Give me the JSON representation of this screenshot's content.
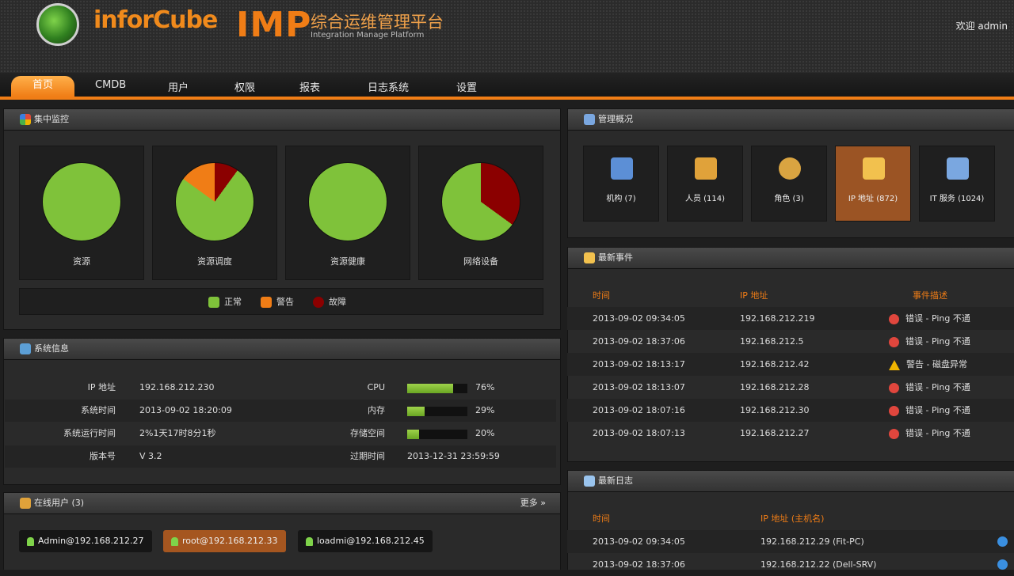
{
  "header": {
    "brand": "inforCube",
    "product": "IMP",
    "title_cn": "综合运维管理平台",
    "title_en": "Integration Manage Platform",
    "user_link": "欢迎 admin"
  },
  "nav": {
    "items": [
      "首页",
      "CMDB",
      "用户",
      "权限",
      "报表",
      "日志系统",
      "设置"
    ]
  },
  "monitor": {
    "title": "集中监控",
    "pies": [
      {
        "label": "资源",
        "normal": 100,
        "warn": 0,
        "fault": 0
      },
      {
        "label": "资源调度",
        "normal": 75,
        "warn": 15,
        "fault": 10
      },
      {
        "label": "资源健康",
        "normal": 100,
        "warn": 0,
        "fault": 0
      },
      {
        "label": "网络设备",
        "normal": 65,
        "warn": 0,
        "fault": 35
      }
    ],
    "legend": [
      "正常",
      "警告",
      "故障"
    ],
    "colors": {
      "normal": "#7fc23a",
      "warn": "#f07d16",
      "fault": "#8b0000"
    }
  },
  "sysinfo": {
    "title": "系统信息",
    "rows": [
      {
        "label": "IP 地址",
        "value": "192.168.212.230",
        "label2": "CPU",
        "bar": 0.76,
        "value2": "76%"
      },
      {
        "label": "系统时间",
        "value": "2013-09-02 18:20:09",
        "label2": "内存",
        "bar": 0.29,
        "value2": "29%"
      },
      {
        "label": "系统运行时间",
        "value": "2%1天17时8分1秒",
        "label2": "存储空间",
        "bar": 0.2,
        "value2": "20%"
      },
      {
        "label": "版本号",
        "value": "V 3.2",
        "label2": "过期时间",
        "value2": "2013-12-31 23:59:59"
      }
    ]
  },
  "online": {
    "title": "在线用户 (3)",
    "more": "更多 »",
    "users": [
      "Admin@192.168.212.27",
      "root@192.168.212.33",
      "loadmi@192.168.212.45"
    ]
  },
  "manage": {
    "title": "管理概况",
    "tiles": [
      {
        "label": "机构 (7)",
        "icon": "building-icon",
        "color": "#5c8fd6"
      },
      {
        "label": "人员 (114)",
        "icon": "people-icon",
        "color": "#e0a23a"
      },
      {
        "label": "角色 (3)",
        "icon": "medal-icon",
        "color": "#d9a441"
      },
      {
        "label": "IP 地址 (872)",
        "icon": "ip-network-icon",
        "color": "#f2c14e"
      },
      {
        "label": "IT 服务 (1024)",
        "icon": "document-icon",
        "color": "#7aa7e0"
      }
    ]
  },
  "events": {
    "title": "最新事件",
    "columns": [
      "时间",
      "IP 地址",
      "事件描述"
    ],
    "rows": [
      {
        "time": "2013-09-02 09:34:05",
        "ip": "192.168.212.219",
        "level": "fault",
        "desc": "错误 - Ping 不通"
      },
      {
        "time": "2013-09-02 18:37:06",
        "ip": "192.168.212.5",
        "level": "fault",
        "desc": "错误 - Ping 不通"
      },
      {
        "time": "2013-09-02 18:13:17",
        "ip": "192.168.212.42",
        "level": "warn",
        "desc": "警告 - 磁盘异常"
      },
      {
        "time": "2013-09-02 18:13:07",
        "ip": "192.168.212.28",
        "level": "fault",
        "desc": "错误 - Ping 不通"
      },
      {
        "time": "2013-09-02 18:07:16",
        "ip": "192.168.212.30",
        "level": "fault",
        "desc": "错误 - Ping 不通"
      },
      {
        "time": "2013-09-02 18:07:13",
        "ip": "192.168.212.27",
        "level": "fault",
        "desc": "错误 - Ping 不通"
      }
    ]
  },
  "logs": {
    "title": "最新日志",
    "columns": [
      "时间",
      "IP 地址 (主机名)"
    ],
    "rows": [
      {
        "time": "2013-09-02 09:34:05",
        "host": "192.168.212.29 (Fit-PC)"
      },
      {
        "time": "2013-09-02 18:37:06",
        "host": "192.168.212.22 (Dell-SRV)"
      }
    ]
  }
}
